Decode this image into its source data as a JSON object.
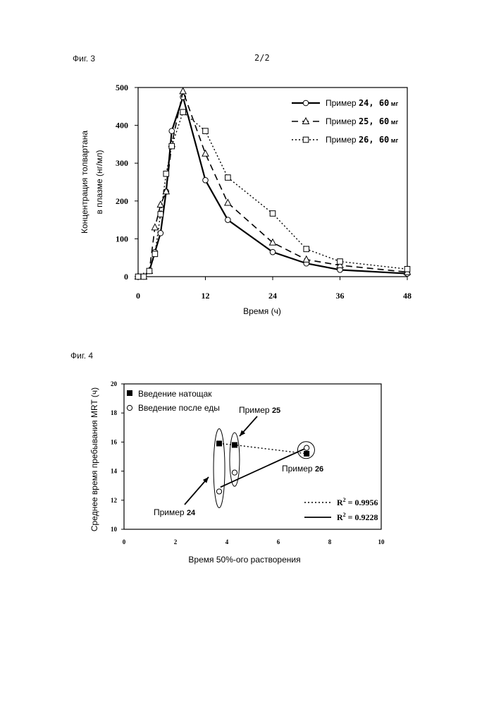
{
  "page": {
    "fig3_label": "Фиг. 3",
    "page_number": "2/2",
    "fig4_label": "Фиг. 4"
  },
  "chart_data": [
    {
      "type": "line",
      "figure": "Фиг. 3",
      "xlabel": "Время (ч)",
      "ylabel_line1": "Концентрация толвартана",
      "ylabel_line2": "в плазме (нг/мл)",
      "xlim": [
        0,
        48
      ],
      "ylim": [
        0,
        500
      ],
      "xticks": [
        0,
        12,
        24,
        36,
        48
      ],
      "yticks": [
        0,
        100,
        200,
        300,
        400,
        500
      ],
      "grid": false,
      "legend_position": "top-right",
      "series": [
        {
          "name": "Пример 24, 60 мг",
          "label_main": "Пример ",
          "label_num": "24,  60",
          "label_unit": " мг",
          "marker": "circle",
          "line": "solid",
          "x": [
            0,
            1,
            2,
            3,
            4,
            5,
            6,
            8,
            12,
            16,
            24,
            30,
            36,
            48
          ],
          "y": [
            0,
            0,
            15,
            65,
            115,
            225,
            385,
            475,
            255,
            150,
            65,
            35,
            18,
            8
          ]
        },
        {
          "name": "Пример 25, 60 мг",
          "label_main": "Пример ",
          "label_num": "25,  60",
          "label_unit": " мг",
          "marker": "triangle",
          "line": "dashed",
          "x": [
            0,
            1,
            2,
            3,
            4,
            5,
            6,
            8,
            12,
            16,
            24,
            30,
            36,
            48
          ],
          "y": [
            0,
            0,
            15,
            130,
            190,
            225,
            350,
            490,
            325,
            195,
            90,
            45,
            30,
            12
          ]
        },
        {
          "name": "Пример 26, 60 мг",
          "label_main": "Пример ",
          "label_num": "26,  60",
          "label_unit": " мг",
          "marker": "square",
          "line": "dotted",
          "x": [
            0,
            1,
            2,
            3,
            4,
            5,
            6,
            8,
            12,
            16,
            24,
            30,
            36,
            48
          ],
          "y": [
            0,
            0,
            15,
            60,
            165,
            272,
            345,
            435,
            385,
            262,
            167,
            73,
            40,
            20
          ]
        }
      ]
    },
    {
      "type": "scatter",
      "figure": "Фиг. 4",
      "xlabel": "Время 50%-ого растворения",
      "ylabel": "Среднее время пребывания MRT (ч)",
      "xlim": [
        0,
        10
      ],
      "ylim": [
        10,
        20
      ],
      "xticks": [
        0,
        2,
        4,
        6,
        8,
        10
      ],
      "yticks": [
        10,
        12,
        14,
        16,
        18,
        20
      ],
      "grid": false,
      "legend_position": "top-left",
      "series": [
        {
          "name": "Введение натощак",
          "marker": "filled-square",
          "x": [
            3.7,
            4.3,
            7.1
          ],
          "y": [
            15.9,
            15.8,
            15.2
          ],
          "fit": "dotted",
          "r2_label": "R",
          "r2_value": " = 0.9956"
        },
        {
          "name": "Введение после еды",
          "marker": "open-circle",
          "x": [
            3.7,
            4.3,
            7.1
          ],
          "y": [
            12.6,
            13.9,
            15.6
          ],
          "fit": "solid",
          "r2_label": "R",
          "r2_value": " = 0.9228"
        }
      ],
      "annotations": [
        {
          "label": "Пример ",
          "num": "24"
        },
        {
          "label": "Пример ",
          "num": "25"
        },
        {
          "label": "Пример ",
          "num": "26"
        }
      ]
    }
  ]
}
